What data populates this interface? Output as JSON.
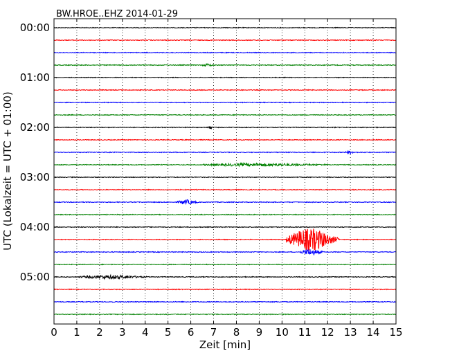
{
  "chart_data": {
    "type": "line",
    "title": "BW.HROE..EHZ 2014-01-29",
    "xlabel": "Zeit  [min]",
    "ylabel": "UTC (Lokalzeit = UTC + 01:00)",
    "xlim": [
      0,
      15
    ],
    "x_ticks": [
      "0",
      "1",
      "2",
      "3",
      "4",
      "5",
      "6",
      "7",
      "8",
      "9",
      "10",
      "11",
      "12",
      "13",
      "14",
      "15"
    ],
    "y_tick_labels": [
      "00:00",
      "01:00",
      "02:00",
      "03:00",
      "04:00",
      "05:00"
    ],
    "trace_interval_minutes": 15,
    "trace_count": 24,
    "trace_colors": [
      "#000000",
      "#ff0000",
      "#0000ff",
      "#008000"
    ],
    "grid": "vertical dotted",
    "events": [
      {
        "row": 3,
        "from_min": 6.5,
        "to_min": 7.0,
        "amp": 1.5
      },
      {
        "row": 8,
        "from_min": 6.75,
        "to_min": 6.95,
        "amp": 2.5
      },
      {
        "row": 10,
        "from_min": 12.8,
        "to_min": 13.2,
        "amp": 1.8
      },
      {
        "row": 11,
        "from_min": 6.5,
        "to_min": 12.0,
        "amp": 1.8
      },
      {
        "row": 14,
        "from_min": 5.4,
        "to_min": 6.3,
        "amp": 3.0
      },
      {
        "row": 17,
        "from_min": 10.2,
        "to_min": 12.5,
        "amp": 16.0
      },
      {
        "row": 18,
        "from_min": 10.8,
        "to_min": 11.8,
        "amp": 4.0
      },
      {
        "row": 20,
        "from_min": 1.1,
        "to_min": 4.1,
        "amp": 2.2
      }
    ]
  }
}
